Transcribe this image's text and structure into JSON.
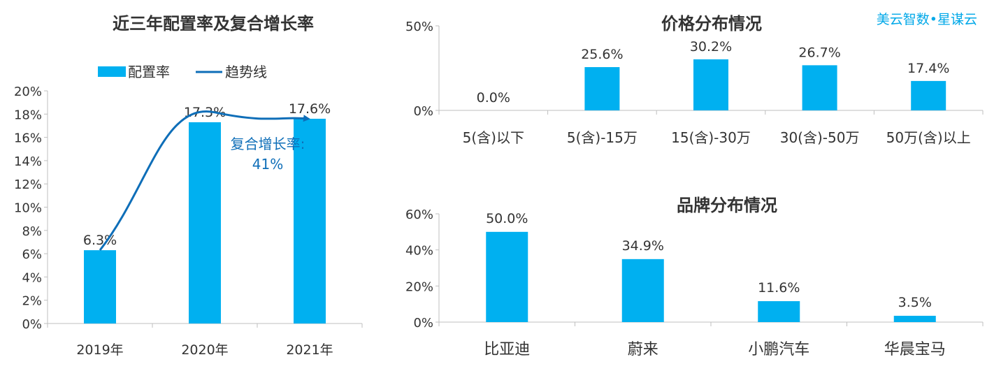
{
  "brand_label": "美云智数•星谋云",
  "chart_data": [
    {
      "id": "left",
      "type": "bar",
      "title": "近三年配置率及复合增长率",
      "categories": [
        "2019年",
        "2020年",
        "2021年"
      ],
      "series": [
        {
          "name": "配置率",
          "values": [
            6.3,
            17.3,
            17.6
          ],
          "labels": [
            "6.3%",
            "17.3%",
            "17.6%"
          ]
        }
      ],
      "trend_label": "趋势线",
      "annotation": {
        "line1": "复合增长率:",
        "line2": "41%"
      },
      "ylim": [
        0,
        20
      ],
      "yticks": [
        0,
        2,
        4,
        6,
        8,
        10,
        12,
        14,
        16,
        18,
        20
      ],
      "ytick_labels": [
        "0%",
        "2%",
        "4%",
        "6%",
        "8%",
        "10%",
        "12%",
        "14%",
        "16%",
        "18%",
        "20%"
      ],
      "legend": "top",
      "colors": {
        "bar": "#00b0f0",
        "line": "#0e6eb8"
      }
    },
    {
      "id": "price",
      "type": "bar",
      "title": "价格分布情况",
      "categories": [
        "5(含)以下",
        "5(含)-15万",
        "15(含)-30万",
        "30(含)-50万",
        "50万(含)以上"
      ],
      "values": [
        0.0,
        25.6,
        30.2,
        26.7,
        17.4
      ],
      "labels": [
        "0.0%",
        "25.6%",
        "30.2%",
        "26.7%",
        "17.4%"
      ],
      "ylim": [
        0,
        50
      ],
      "yticks": [
        0,
        50
      ],
      "ytick_labels": [
        "0%",
        "50%"
      ],
      "colors": {
        "bar": "#00b0f0"
      }
    },
    {
      "id": "brand",
      "type": "bar",
      "title": "品牌分布情况",
      "categories": [
        "比亚迪",
        "蔚来",
        "小鹏汽车",
        "华晨宝马"
      ],
      "values": [
        50.0,
        34.9,
        11.6,
        3.5
      ],
      "labels": [
        "50.0%",
        "34.9%",
        "11.6%",
        "3.5%"
      ],
      "ylim": [
        0,
        60
      ],
      "yticks": [
        0,
        20,
        40,
        60
      ],
      "ytick_labels": [
        "0%",
        "20%",
        "40%",
        "60%"
      ],
      "colors": {
        "bar": "#00b0f0"
      }
    }
  ]
}
